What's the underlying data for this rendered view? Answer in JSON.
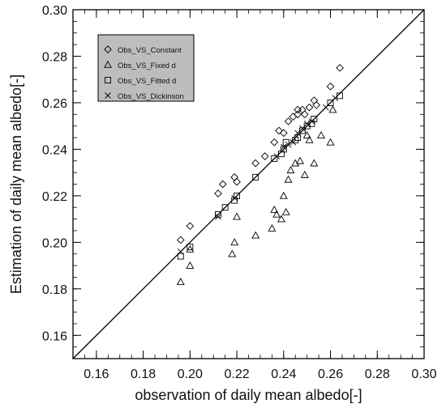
{
  "chart_data": {
    "type": "scatter",
    "xlabel": "observation of daily mean albedo[-]",
    "ylabel": "Estimation of daily mean albedo[-]",
    "xlim": [
      0.15,
      0.3
    ],
    "ylim": [
      0.15,
      0.3
    ],
    "x_ticks": [
      "0.16",
      "0.18",
      "0.20",
      "0.22",
      "0.24",
      "0.26",
      "0.28",
      "0.30"
    ],
    "y_ticks": [
      "0.16",
      "0.18",
      "0.20",
      "0.22",
      "0.24",
      "0.26",
      "0.28",
      "0.30"
    ],
    "reference_line": "1:1",
    "legend_position": "top-left",
    "series": [
      {
        "name": "Obs_VS_Constant",
        "marker": "diamond",
        "points": [
          [
            0.196,
            0.201
          ],
          [
            0.2,
            0.207
          ],
          [
            0.212,
            0.221
          ],
          [
            0.214,
            0.225
          ],
          [
            0.219,
            0.228
          ],
          [
            0.22,
            0.226
          ],
          [
            0.228,
            0.234
          ],
          [
            0.232,
            0.237
          ],
          [
            0.236,
            0.243
          ],
          [
            0.238,
            0.248
          ],
          [
            0.24,
            0.247
          ],
          [
            0.242,
            0.252
          ],
          [
            0.244,
            0.254
          ],
          [
            0.246,
            0.255
          ],
          [
            0.246,
            0.257
          ],
          [
            0.248,
            0.257
          ],
          [
            0.249,
            0.255
          ],
          [
            0.251,
            0.258
          ],
          [
            0.253,
            0.261
          ],
          [
            0.254,
            0.259
          ],
          [
            0.26,
            0.267
          ],
          [
            0.264,
            0.275
          ]
        ]
      },
      {
        "name": "Obs_VS_Fixed d",
        "marker": "triangle",
        "points": [
          [
            0.196,
            0.183
          ],
          [
            0.2,
            0.19
          ],
          [
            0.2,
            0.197
          ],
          [
            0.218,
            0.195
          ],
          [
            0.219,
            0.2
          ],
          [
            0.22,
            0.211
          ],
          [
            0.228,
            0.203
          ],
          [
            0.235,
            0.206
          ],
          [
            0.236,
            0.214
          ],
          [
            0.237,
            0.212
          ],
          [
            0.239,
            0.21
          ],
          [
            0.24,
            0.22
          ],
          [
            0.241,
            0.213
          ],
          [
            0.242,
            0.227
          ],
          [
            0.243,
            0.231
          ],
          [
            0.245,
            0.234
          ],
          [
            0.247,
            0.235
          ],
          [
            0.249,
            0.229
          ],
          [
            0.25,
            0.246
          ],
          [
            0.251,
            0.244
          ],
          [
            0.253,
            0.234
          ],
          [
            0.256,
            0.246
          ],
          [
            0.26,
            0.243
          ],
          [
            0.261,
            0.257
          ]
        ]
      },
      {
        "name": "Obs_VS_Fitted d",
        "marker": "square",
        "points": [
          [
            0.196,
            0.194
          ],
          [
            0.2,
            0.198
          ],
          [
            0.212,
            0.212
          ],
          [
            0.215,
            0.215
          ],
          [
            0.219,
            0.218
          ],
          [
            0.22,
            0.22
          ],
          [
            0.228,
            0.228
          ],
          [
            0.236,
            0.236
          ],
          [
            0.239,
            0.238
          ],
          [
            0.24,
            0.24
          ],
          [
            0.241,
            0.243
          ],
          [
            0.245,
            0.244
          ],
          [
            0.246,
            0.245
          ],
          [
            0.248,
            0.248
          ],
          [
            0.25,
            0.25
          ],
          [
            0.252,
            0.251
          ],
          [
            0.253,
            0.253
          ],
          [
            0.26,
            0.26
          ],
          [
            0.264,
            0.263
          ]
        ]
      },
      {
        "name": "Obs_VS_Dickinson",
        "marker": "x",
        "points": [
          [
            0.196,
            0.196
          ],
          [
            0.212,
            0.211
          ],
          [
            0.219,
            0.219
          ],
          [
            0.237,
            0.237
          ],
          [
            0.24,
            0.241
          ],
          [
            0.242,
            0.242
          ],
          [
            0.244,
            0.243
          ],
          [
            0.246,
            0.247
          ],
          [
            0.248,
            0.249
          ],
          [
            0.25,
            0.251
          ],
          [
            0.252,
            0.252
          ],
          [
            0.258,
            0.258
          ],
          [
            0.262,
            0.262
          ]
        ]
      }
    ]
  }
}
